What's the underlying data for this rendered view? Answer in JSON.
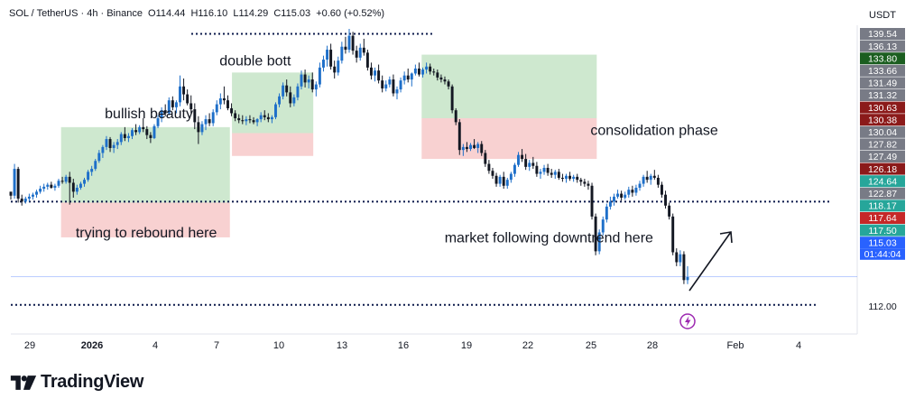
{
  "header": {
    "symbol": "SOL / TetherUS · 4h · Binance",
    "open": "O114.44",
    "high": "H116.10",
    "low": "L114.29",
    "close": "C115.03",
    "change": "+0.60 (+0.52%)"
  },
  "currency_label": "USDT",
  "brand": "TradingView",
  "chart_data": {
    "type": "candlestick",
    "ylim": [
      111.2,
      140.6
    ],
    "x_tick_labels": [
      "29",
      "2026",
      "4",
      "7",
      "10",
      "13",
      "16",
      "19",
      "22",
      "25",
      "28",
      "Feb",
      "4"
    ],
    "price_axis_labels": [
      {
        "value": 139.54,
        "text": "139.54",
        "bg": "#787b86"
      },
      {
        "value": 136.13,
        "text": "136.13",
        "bg": "#787b86"
      },
      {
        "value": 133.8,
        "text": "133.80",
        "bg": "#1b5e20"
      },
      {
        "value": 133.66,
        "text": "133.66",
        "bg": "#787b86"
      },
      {
        "value": 131.49,
        "text": "131.49",
        "bg": "#787b86"
      },
      {
        "value": 131.32,
        "text": "131.32",
        "bg": "#787b86"
      },
      {
        "value": 130.63,
        "text": "130.63",
        "bg": "#8b1a1a"
      },
      {
        "value": 130.38,
        "text": "130.38",
        "bg": "#8b1a1a"
      },
      {
        "value": 130.04,
        "text": "130.04",
        "bg": "#787b86"
      },
      {
        "value": 127.82,
        "text": "127.82",
        "bg": "#787b86"
      },
      {
        "value": 127.49,
        "text": "127.49",
        "bg": "#787b86"
      },
      {
        "value": 126.18,
        "text": "126.18",
        "bg": "#8b1a1a"
      },
      {
        "value": 124.64,
        "text": "124.64",
        "bg": "#26a69a"
      },
      {
        "value": 122.87,
        "text": "122.87",
        "bg": "#787b86"
      },
      {
        "value": 118.17,
        "text": "118.17",
        "bg": "#26a69a"
      },
      {
        "value": 117.64,
        "text": "117.64",
        "bg": "#c62828"
      },
      {
        "value": 117.5,
        "text": "117.50",
        "bg": "#26a69a"
      },
      {
        "value": 115.03,
        "text": "115.03",
        "bg": "#2962ff"
      },
      {
        "value": 112.0,
        "text": "112.00",
        "bg": "none"
      }
    ],
    "countdown": "01:44:04",
    "annotations": [
      {
        "text": "bullish beauty",
        "x": 3.6,
        "y": 131.0
      },
      {
        "text": "double bott",
        "x": 9.1,
        "y": 136.3
      },
      {
        "text": "consolidation phase",
        "x": 26.9,
        "y": 129.3
      },
      {
        "text": "trying to rebound here",
        "x": 2.2,
        "y": 119.0
      },
      {
        "text": "market following downtrend here",
        "x": 19.9,
        "y": 118.5
      }
    ],
    "horizontal_levels": [
      139.5,
      122.6,
      112.2
    ],
    "boxes": [
      {
        "x0": 1.5,
        "x1": 9.6,
        "y_top": 130.1,
        "y_mid": 122.5,
        "y_bottom": 119.0
      },
      {
        "x0": 9.7,
        "x1": 13.6,
        "y_top": 135.6,
        "y_mid": 129.5,
        "y_bottom": 127.2
      },
      {
        "x0": 18.8,
        "x1": 27.2,
        "y_top": 137.4,
        "y_mid": 131.0,
        "y_bottom": 126.9
      }
    ],
    "candles": [
      [
        123.6,
        123.6,
        122.8,
        123.2
      ],
      [
        123.2,
        126.4,
        122.9,
        125.9
      ],
      [
        125.9,
        126.1,
        122.5,
        122.9
      ],
      [
        122.9,
        123.3,
        122.2,
        122.6
      ],
      [
        122.6,
        123.1,
        122.4,
        122.9
      ],
      [
        122.9,
        123.4,
        122.6,
        123.1
      ],
      [
        123.1,
        123.5,
        122.8,
        123.3
      ],
      [
        123.3,
        123.8,
        123.0,
        123.6
      ],
      [
        123.6,
        124.2,
        123.4,
        123.9
      ],
      [
        123.9,
        124.4,
        123.6,
        124.1
      ],
      [
        124.1,
        124.5,
        123.8,
        124.3
      ],
      [
        124.3,
        124.6,
        123.9,
        124.0
      ],
      [
        124.0,
        124.4,
        123.7,
        124.2
      ],
      [
        124.2,
        124.9,
        124.0,
        124.7
      ],
      [
        124.7,
        125.1,
        124.4,
        124.6
      ],
      [
        124.6,
        125.3,
        124.4,
        125.1
      ],
      [
        125.1,
        125.6,
        122.3,
        124.5
      ],
      [
        124.5,
        124.9,
        123.0,
        123.6
      ],
      [
        123.6,
        124.3,
        123.3,
        124.0
      ],
      [
        124.0,
        124.6,
        123.8,
        124.4
      ],
      [
        124.4,
        125.0,
        124.1,
        124.8
      ],
      [
        124.8,
        125.8,
        124.6,
        125.6
      ],
      [
        125.6,
        126.2,
        125.2,
        125.9
      ],
      [
        125.9,
        126.9,
        125.7,
        126.7
      ],
      [
        126.7,
        127.8,
        126.5,
        127.5
      ],
      [
        127.5,
        128.3,
        127.0,
        128.1
      ],
      [
        128.1,
        129.2,
        127.8,
        128.9
      ],
      [
        128.9,
        129.1,
        127.6,
        128.0
      ],
      [
        128.0,
        128.6,
        127.5,
        128.3
      ],
      [
        128.3,
        128.9,
        127.9,
        128.6
      ],
      [
        128.6,
        129.6,
        128.3,
        129.4
      ],
      [
        129.4,
        130.1,
        128.7,
        129.0
      ],
      [
        129.0,
        129.5,
        128.6,
        129.2
      ],
      [
        129.2,
        130.0,
        128.9,
        129.8
      ],
      [
        129.8,
        130.4,
        129.3,
        129.6
      ],
      [
        129.6,
        130.3,
        129.4,
        130.1
      ],
      [
        130.1,
        131.0,
        129.6,
        129.9
      ],
      [
        129.9,
        130.2,
        128.9,
        129.3
      ],
      [
        129.3,
        129.6,
        128.5,
        129.0
      ],
      [
        129.0,
        130.4,
        128.9,
        130.2
      ],
      [
        130.2,
        131.3,
        130.0,
        131.0
      ],
      [
        131.0,
        132.1,
        130.6,
        131.8
      ],
      [
        131.8,
        132.4,
        131.2,
        131.5
      ],
      [
        131.5,
        133.1,
        131.3,
        132.8
      ],
      [
        132.8,
        133.2,
        131.8,
        132.1
      ],
      [
        132.1,
        132.8,
        131.5,
        132.6
      ],
      [
        132.6,
        135.3,
        132.2,
        134.2
      ],
      [
        134.2,
        135.0,
        132.8,
        133.4
      ],
      [
        133.4,
        133.9,
        132.3,
        132.5
      ],
      [
        132.5,
        133.3,
        131.5,
        131.9
      ],
      [
        131.9,
        132.5,
        129.9,
        130.6
      ],
      [
        130.6,
        131.2,
        128.4,
        129.6
      ],
      [
        129.6,
        130.7,
        129.3,
        130.4
      ],
      [
        130.4,
        131.3,
        129.8,
        130.9
      ],
      [
        130.9,
        131.5,
        130.2,
        130.5
      ],
      [
        130.5,
        131.9,
        130.2,
        131.6
      ],
      [
        131.6,
        132.8,
        131.3,
        132.4
      ],
      [
        132.4,
        133.5,
        131.9,
        133.0
      ],
      [
        133.0,
        134.2,
        132.4,
        132.8
      ],
      [
        132.8,
        133.3,
        131.8,
        132.0
      ],
      [
        132.0,
        132.5,
        131.2,
        131.5
      ],
      [
        131.5,
        131.8,
        130.7,
        131.0
      ],
      [
        131.0,
        131.4,
        130.5,
        130.8
      ],
      [
        130.8,
        131.3,
        130.4,
        130.7
      ],
      [
        130.7,
        131.2,
        130.3,
        130.9
      ],
      [
        130.9,
        131.3,
        130.5,
        130.8
      ],
      [
        130.8,
        131.1,
        130.4,
        130.6
      ],
      [
        130.6,
        131.0,
        130.2,
        130.9
      ],
      [
        130.9,
        131.6,
        130.6,
        131.3
      ],
      [
        131.3,
        131.8,
        130.8,
        131.1
      ],
      [
        131.1,
        131.5,
        130.6,
        130.9
      ],
      [
        130.9,
        131.3,
        130.5,
        131.1
      ],
      [
        131.1,
        132.6,
        130.9,
        132.4
      ],
      [
        132.4,
        133.5,
        132.1,
        133.2
      ],
      [
        133.2,
        134.6,
        132.9,
        134.3
      ],
      [
        134.3,
        134.9,
        133.2,
        133.6
      ],
      [
        133.6,
        134.2,
        132.1,
        132.5
      ],
      [
        132.5,
        133.4,
        132.2,
        133.1
      ],
      [
        133.1,
        134.5,
        132.8,
        134.2
      ],
      [
        134.2,
        135.8,
        133.9,
        135.4
      ],
      [
        135.4,
        135.9,
        134.1,
        134.6
      ],
      [
        134.6,
        135.3,
        134.0,
        134.9
      ],
      [
        134.9,
        135.6,
        133.6,
        133.9
      ],
      [
        133.9,
        134.7,
        133.2,
        134.4
      ],
      [
        134.4,
        136.6,
        134.1,
        136.1
      ],
      [
        136.1,
        137.3,
        135.7,
        136.9
      ],
      [
        136.9,
        138.3,
        136.2,
        137.9
      ],
      [
        137.9,
        138.5,
        135.9,
        136.2
      ],
      [
        136.2,
        136.8,
        135.0,
        135.6
      ],
      [
        135.6,
        137.2,
        135.3,
        136.8
      ],
      [
        136.8,
        138.7,
        136.5,
        138.2
      ],
      [
        138.2,
        139.2,
        137.5,
        137.9
      ],
      [
        137.9,
        140.0,
        137.6,
        139.3
      ],
      [
        139.3,
        139.7,
        137.4,
        137.8
      ],
      [
        137.8,
        138.3,
        136.6,
        137.1
      ],
      [
        137.1,
        138.5,
        136.8,
        138.1
      ],
      [
        138.1,
        139.0,
        137.3,
        137.6
      ],
      [
        137.6,
        137.9,
        135.8,
        136.1
      ],
      [
        136.1,
        136.6,
        134.9,
        135.3
      ],
      [
        135.3,
        136.1,
        134.7,
        135.8
      ],
      [
        135.8,
        136.4,
        134.5,
        134.8
      ],
      [
        134.8,
        135.3,
        133.6,
        134.0
      ],
      [
        134.0,
        134.8,
        133.7,
        134.4
      ],
      [
        134.4,
        135.2,
        134.1,
        134.9
      ],
      [
        134.9,
        135.4,
        133.2,
        133.5
      ],
      [
        133.5,
        134.2,
        132.9,
        133.9
      ],
      [
        133.9,
        135.1,
        133.6,
        134.8
      ],
      [
        134.8,
        135.7,
        134.4,
        135.3
      ],
      [
        135.3,
        136.0,
        134.6,
        134.9
      ],
      [
        134.9,
        135.6,
        134.2,
        135.5
      ],
      [
        135.5,
        136.4,
        135.3,
        136.0
      ],
      [
        136.0,
        136.6,
        135.2,
        135.4
      ],
      [
        135.4,
        136.1,
        135.1,
        135.9
      ],
      [
        135.9,
        136.6,
        135.5,
        136.2
      ],
      [
        136.2,
        136.5,
        135.4,
        135.7
      ],
      [
        135.7,
        136.0,
        135.3,
        135.6
      ],
      [
        135.6,
        135.9,
        134.8,
        135.1
      ],
      [
        135.1,
        135.4,
        134.6,
        134.9
      ],
      [
        134.9,
        135.2,
        134.4,
        134.7
      ],
      [
        134.7,
        134.9,
        133.9,
        134.2
      ],
      [
        134.2,
        134.4,
        131.5,
        131.8
      ],
      [
        131.8,
        132.0,
        130.3,
        130.6
      ],
      [
        130.6,
        130.9,
        127.3,
        127.8
      ],
      [
        127.8,
        128.4,
        127.2,
        128.1
      ],
      [
        128.1,
        128.6,
        127.6,
        127.9
      ],
      [
        127.9,
        128.5,
        127.7,
        128.3
      ],
      [
        128.3,
        128.9,
        127.9,
        128.0
      ],
      [
        128.0,
        128.6,
        127.5,
        128.4
      ],
      [
        128.4,
        128.7,
        127.2,
        127.5
      ],
      [
        127.5,
        127.8,
        126.1,
        126.4
      ],
      [
        126.4,
        126.8,
        125.4,
        125.7
      ],
      [
        125.7,
        126.0,
        124.9,
        125.2
      ],
      [
        125.2,
        125.5,
        124.1,
        124.4
      ],
      [
        124.4,
        125.3,
        124.1,
        125.1
      ],
      [
        125.1,
        125.6,
        123.9,
        124.2
      ],
      [
        124.2,
        125.0,
        123.9,
        124.8
      ],
      [
        124.8,
        125.6,
        124.5,
        125.4
      ],
      [
        125.4,
        126.5,
        125.1,
        126.3
      ],
      [
        126.3,
        127.6,
        126.1,
        127.3
      ],
      [
        127.3,
        127.9,
        126.6,
        126.9
      ],
      [
        126.9,
        127.4,
        125.8,
        126.1
      ],
      [
        126.1,
        126.8,
        125.7,
        126.5
      ],
      [
        126.5,
        127.1,
        125.9,
        126.2
      ],
      [
        126.2,
        126.6,
        125.1,
        125.4
      ],
      [
        125.4,
        125.9,
        124.9,
        125.6
      ],
      [
        125.6,
        126.3,
        125.3,
        126.0
      ],
      [
        126.0,
        126.4,
        125.2,
        125.5
      ],
      [
        125.5,
        125.9,
        125.0,
        125.3
      ],
      [
        125.3,
        125.8,
        124.9,
        125.6
      ],
      [
        125.6,
        125.9,
        124.8,
        125.0
      ],
      [
        125.0,
        125.4,
        124.6,
        124.9
      ],
      [
        124.9,
        125.4,
        124.5,
        125.2
      ],
      [
        125.2,
        125.6,
        124.7,
        124.9
      ],
      [
        124.9,
        125.3,
        124.6,
        125.1
      ],
      [
        125.1,
        125.4,
        124.5,
        124.8
      ],
      [
        124.8,
        125.0,
        124.2,
        124.6
      ],
      [
        124.6,
        124.9,
        124.1,
        124.4
      ],
      [
        124.4,
        124.7,
        123.8,
        124.2
      ],
      [
        124.2,
        124.5,
        120.8,
        121.1
      ],
      [
        121.1,
        121.4,
        117.2,
        117.6
      ],
      [
        117.6,
        119.8,
        117.3,
        119.5
      ],
      [
        119.5,
        121.1,
        119.2,
        120.8
      ],
      [
        120.8,
        122.4,
        120.5,
        122.1
      ],
      [
        122.1,
        123.1,
        121.8,
        122.6
      ],
      [
        122.6,
        123.4,
        122.2,
        123.1
      ],
      [
        123.1,
        123.8,
        122.9,
        123.4
      ],
      [
        123.4,
        123.7,
        122.7,
        123.0
      ],
      [
        123.0,
        123.6,
        122.8,
        123.3
      ],
      [
        123.3,
        124.1,
        123.0,
        123.8
      ],
      [
        123.8,
        124.2,
        123.1,
        123.5
      ],
      [
        123.5,
        124.3,
        123.2,
        124.0
      ],
      [
        124.0,
        124.7,
        123.7,
        124.4
      ],
      [
        124.4,
        125.3,
        124.1,
        125.1
      ],
      [
        125.1,
        125.7,
        124.5,
        124.8
      ],
      [
        124.8,
        125.4,
        124.3,
        125.2
      ],
      [
        125.2,
        125.8,
        124.8,
        125.0
      ],
      [
        125.0,
        125.3,
        124.0,
        124.3
      ],
      [
        124.3,
        124.6,
        123.0,
        123.3
      ],
      [
        123.3,
        123.7,
        121.9,
        122.2
      ],
      [
        122.2,
        122.5,
        120.8,
        121.1
      ],
      [
        121.1,
        121.4,
        117.2,
        117.5
      ],
      [
        117.5,
        117.9,
        116.1,
        116.5
      ],
      [
        116.5,
        117.7,
        116.1,
        117.3
      ],
      [
        117.3,
        117.6,
        114.3,
        114.7
      ],
      [
        114.7,
        116.1,
        114.3,
        115.0
      ]
    ]
  }
}
